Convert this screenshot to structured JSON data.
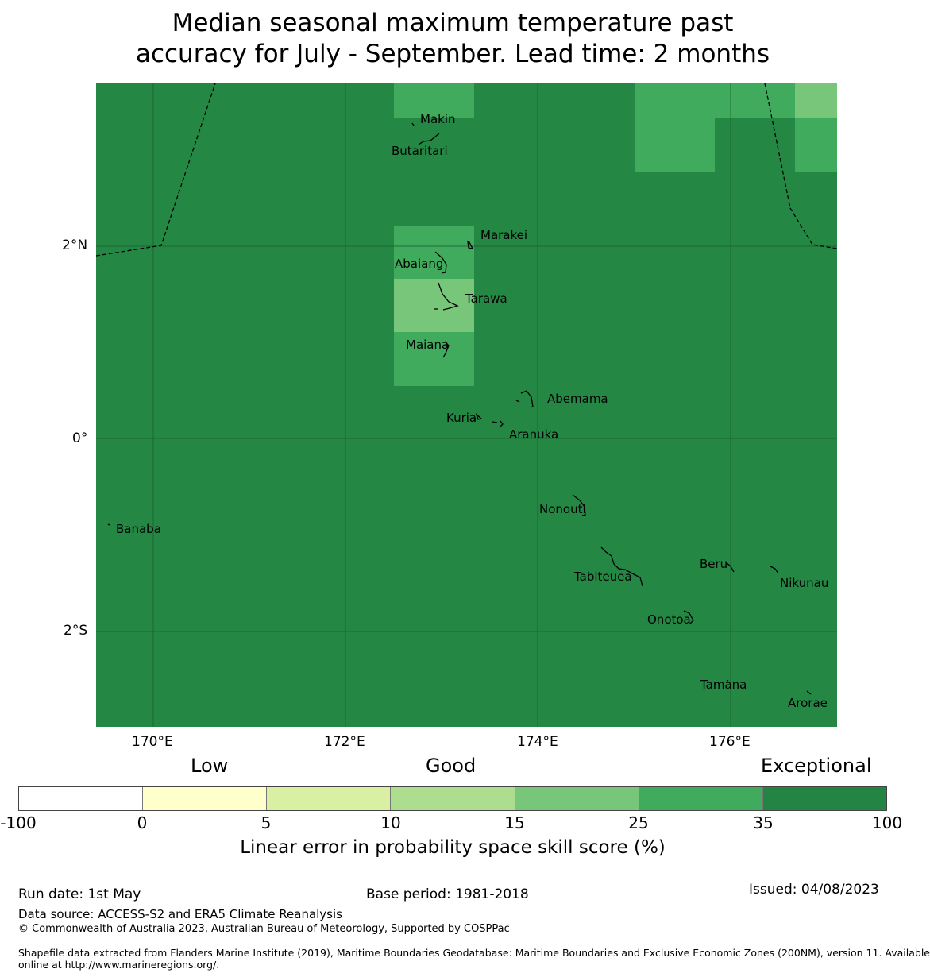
{
  "title": {
    "line1": "Median seasonal maximum temperature past",
    "line2": "accuracy for July - September. Lead time: 2 months"
  },
  "map": {
    "base_color": "#258744",
    "cell_colors": {
      "35-100": "#258744",
      "25-35": "#41ab5d",
      "15-25": "#78c679"
    },
    "lon_ticks": [
      "170°E",
      "172°E",
      "174°E",
      "176°E"
    ],
    "lat_ticks": [
      "2°N",
      "0°",
      "2°S"
    ],
    "islands": [
      "Makin",
      "Butaritari",
      "Marakei",
      "Abaiang",
      "Tarawa",
      "Maiana",
      "Abemama",
      "Kuria",
      "Aranuka",
      "Banaba",
      "Nonouti",
      "Beru",
      "Tabiteuea",
      "Nikunau",
      "Onotoa",
      "Tamana",
      "Arorae"
    ]
  },
  "legend": {
    "categories": [
      "Low",
      "Good",
      "Exceptional"
    ],
    "colors": [
      "#ffffff",
      "#ffffcc",
      "#d9f0a3",
      "#addd8e",
      "#78c679",
      "#41ab5d",
      "#238443"
    ],
    "ticks": [
      "-100",
      "0",
      "5",
      "10",
      "15",
      "25",
      "35",
      "100"
    ],
    "label": "Linear error in probability space skill score (%)"
  },
  "footer": {
    "run_date": "Run date: 1st May",
    "base_period": "Base period: 1981-2018",
    "issued": "Issued: 04/08/2023",
    "data_source": "Data source: ACCESS-S2 and ERA5 Climate Reanalysis",
    "copyright": "© Commonwealth of Australia 2023, Australian Bureau of Meteorology, Supported by COSPPac",
    "shapefile_line1": "Shapefile data extracted from Flanders Marine Institute (2019), Maritime Boundaries Geodatabase: Maritime Boundaries and Exclusive Economic Zones (200NM), version 11. Available",
    "shapefile_line2": "online at http://www.marineregions.org/."
  }
}
